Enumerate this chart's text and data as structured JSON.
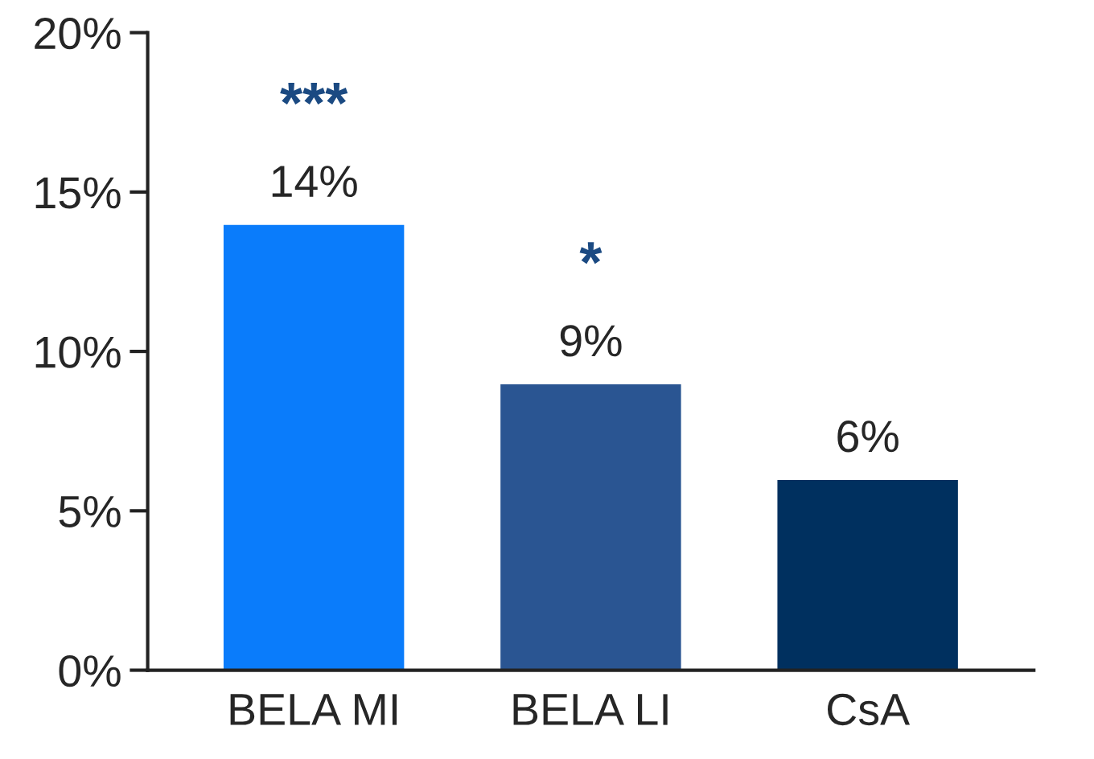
{
  "chart_data": {
    "type": "bar",
    "categories": [
      "BELA MI",
      "BELA LI",
      "CsA"
    ],
    "values": [
      14,
      9,
      6
    ],
    "colors": [
      "#0a7cfb",
      "#2a5592",
      "#00305f"
    ],
    "value_labels": [
      "14%",
      "9%",
      "6%"
    ],
    "ylim": [
      0,
      20
    ],
    "yticks": [
      {
        "value": 0,
        "label": "0%"
      },
      {
        "value": 5,
        "label": "5%"
      },
      {
        "value": 10,
        "label": "10%"
      },
      {
        "value": 15,
        "label": "15%"
      },
      {
        "value": 20,
        "label": "20%"
      }
    ],
    "annotations": [
      "***",
      "*"
    ],
    "grid": false,
    "legend": false
  }
}
